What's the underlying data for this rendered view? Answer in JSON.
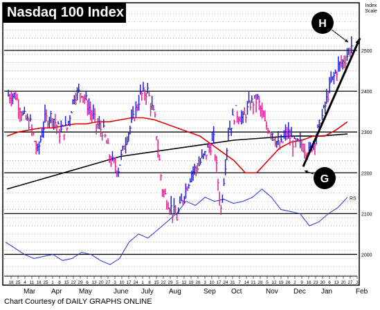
{
  "chart_data": {
    "type": "ohlc",
    "title": "Nasdaq 100 Index",
    "y_scale_label": "Index Scale",
    "credit": "Chart Courtesy of DAILY GRAPHS ONLINE",
    "y_ticks": [
      2000,
      2100,
      2200,
      2300,
      2400,
      2500
    ],
    "ylim": [
      1950,
      2610
    ],
    "x_day_ticks": [
      "18",
      "25",
      "4",
      "11",
      "18",
      "25",
      "1",
      "8",
      "15",
      "22",
      "29",
      "6",
      "13",
      "20",
      "27",
      "3",
      "10",
      "17",
      "24",
      "1",
      "8",
      "15",
      "22",
      "29",
      "5",
      "12",
      "19",
      "26",
      "3",
      "10",
      "17",
      "24",
      "31",
      "7",
      "14",
      "21",
      "28",
      "5",
      "12",
      "19",
      "26",
      "2",
      "9",
      "16",
      "23",
      "30",
      "6",
      "13",
      "20",
      "27",
      "3"
    ],
    "x_month_labels": [
      "Mar",
      "Apr",
      "May",
      "June",
      "July",
      "Aug",
      "Sep",
      "Oct",
      "Nov",
      "Dec",
      "Jan",
      "Feb"
    ],
    "annotations": [
      {
        "label": "H",
        "note": "circled, arrow to high near 2520"
      },
      {
        "label": "G",
        "note": "circled, arrow to late-Nov low near 2215"
      }
    ],
    "price_weekly_close": [
      2390,
      2340,
      2320,
      2250,
      2330,
      2340,
      2300,
      2310,
      2390,
      2400,
      2360,
      2320,
      2300,
      2230,
      2210,
      2280,
      2330,
      2390,
      2400,
      2330,
      2160,
      2120,
      2090,
      2150,
      2200,
      2220,
      2250,
      2280,
      2110,
      2300,
      2350,
      2330,
      2370,
      2380,
      2320,
      2300,
      2260,
      2300,
      2270,
      2270,
      2250,
      2290,
      2350,
      2420,
      2460,
      2480,
      2520
    ],
    "ma_50_series": [
      2290,
      2300,
      2305,
      2310,
      2310,
      2315,
      2320,
      2320,
      2325,
      2325,
      2330,
      2335,
      2335,
      2330,
      2320,
      2310,
      2300,
      2290,
      2270,
      2250,
      2230,
      2200,
      2200,
      2230,
      2260,
      2275,
      2280,
      2290,
      2290,
      2305,
      2325
    ],
    "ma_200_series": [
      2160,
      2180,
      2200,
      2220,
      2240,
      2250,
      2260,
      2270,
      2280,
      2285,
      2290,
      2290,
      2295
    ],
    "relative_strength_label": "RS",
    "relative_strength_series": [
      2030,
      2015,
      2000,
      1990,
      1995,
      2000,
      1985,
      1990,
      2005,
      2000,
      1985,
      1975,
      1990,
      2030,
      2050,
      2040,
      2060,
      2080,
      2100,
      2130,
      2120,
      2140,
      2130,
      2135,
      2125,
      2130,
      2140,
      2160,
      2140,
      2110,
      2105,
      2100,
      2070,
      2080,
      2100,
      2115,
      2140
    ],
    "colors": {
      "up_bar": "#1a1adf",
      "down_bar": "#e0208c",
      "ma_50": "#e00000",
      "ma_200": "#000000",
      "rs_line": "#2030d0",
      "grid": "#000000"
    }
  }
}
